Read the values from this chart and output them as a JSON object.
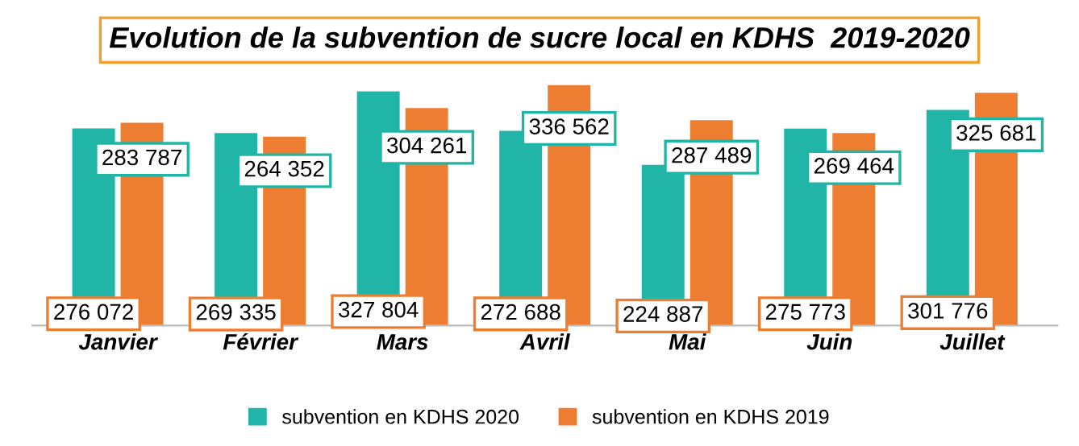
{
  "chart_data": {
    "type": "bar",
    "title": "Evolution de la subvention de sucre local en KDHS  2019-2020",
    "categories": [
      "Janvier",
      "Février",
      "Mars",
      "Avril",
      "Mai",
      "Juin",
      "Juillet"
    ],
    "series": [
      {
        "name": "subvention en KDHS 2020",
        "color": "#20b5a6",
        "values": [
          276072,
          269335,
          327804,
          272688,
          224887,
          275773,
          301776
        ],
        "value_labels": [
          "276 072",
          "269 335",
          "327 804",
          "272 688",
          "224 887",
          "275 773",
          "301 776"
        ]
      },
      {
        "name": "subvention en KDHS 2019",
        "color": "#ed7d31",
        "values": [
          283787,
          264352,
          304261,
          336562,
          287489,
          269464,
          325681
        ],
        "value_labels": [
          "283 787",
          "264 352",
          "304 261",
          "336 562",
          "287 489",
          "269 464",
          "325 681"
        ]
      }
    ],
    "legend": "bottom",
    "grid": false
  }
}
